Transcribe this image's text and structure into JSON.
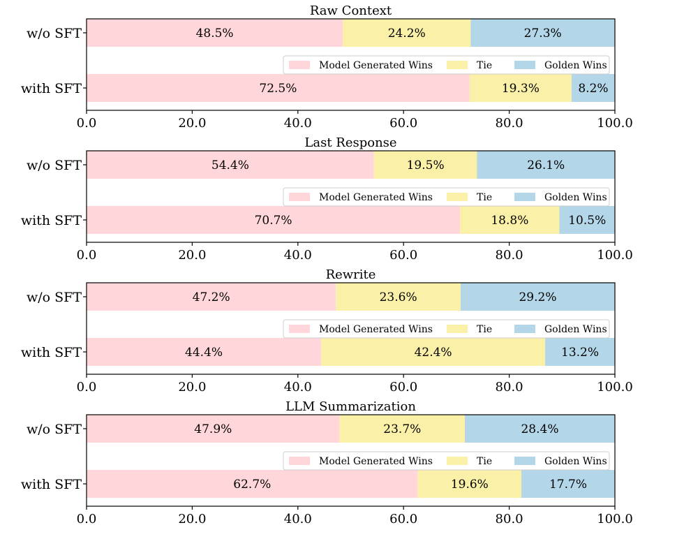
{
  "chart_data": [
    {
      "type": "bar",
      "orientation": "horizontal-stacked",
      "title": "Raw Context",
      "categories": [
        "w/o SFT",
        "with SFT"
      ],
      "series": [
        {
          "name": "Model Generated Wins",
          "color": "#ffd6d9",
          "values": [
            48.5,
            72.5
          ],
          "labels": [
            "48.5%",
            "72.5%"
          ]
        },
        {
          "name": "Tie",
          "color": "#fbf0a8",
          "values": [
            24.2,
            19.3
          ],
          "labels": [
            "24.2%",
            "19.3%"
          ]
        },
        {
          "name": "Golden Wins",
          "color": "#b3d6e8",
          "values": [
            27.3,
            8.2
          ],
          "labels": [
            "27.3%",
            "8.2%"
          ]
        }
      ],
      "xlim": [
        0,
        100
      ],
      "xticks": [
        "0.0",
        "20.0",
        "40.0",
        "60.0",
        "80.0",
        "100.0"
      ],
      "legend": "center"
    },
    {
      "type": "bar",
      "orientation": "horizontal-stacked",
      "title": "Last Response",
      "categories": [
        "w/o SFT",
        "with SFT"
      ],
      "series": [
        {
          "name": "Model Generated Wins",
          "color": "#ffd6d9",
          "values": [
            54.4,
            70.7
          ],
          "labels": [
            "54.4%",
            "70.7%"
          ]
        },
        {
          "name": "Tie",
          "color": "#fbf0a8",
          "values": [
            19.5,
            18.8
          ],
          "labels": [
            "19.5%",
            "18.8%"
          ]
        },
        {
          "name": "Golden Wins",
          "color": "#b3d6e8",
          "values": [
            26.1,
            10.5
          ],
          "labels": [
            "26.1%",
            "10.5%"
          ]
        }
      ],
      "xlim": [
        0,
        100
      ],
      "xticks": [
        "0.0",
        "20.0",
        "40.0",
        "60.0",
        "80.0",
        "100.0"
      ],
      "legend": "center"
    },
    {
      "type": "bar",
      "orientation": "horizontal-stacked",
      "title": "Rewrite",
      "categories": [
        "w/o SFT",
        "with SFT"
      ],
      "series": [
        {
          "name": "Model Generated Wins",
          "color": "#ffd6d9",
          "values": [
            47.2,
            44.4
          ],
          "labels": [
            "47.2%",
            "44.4%"
          ]
        },
        {
          "name": "Tie",
          "color": "#fbf0a8",
          "values": [
            23.6,
            42.4
          ],
          "labels": [
            "23.6%",
            "42.4%"
          ]
        },
        {
          "name": "Golden Wins",
          "color": "#b3d6e8",
          "values": [
            29.2,
            13.2
          ],
          "labels": [
            "29.2%",
            "13.2%"
          ]
        }
      ],
      "xlim": [
        0,
        100
      ],
      "xticks": [
        "0.0",
        "20.0",
        "40.0",
        "60.0",
        "80.0",
        "100.0"
      ],
      "legend": "center"
    },
    {
      "type": "bar",
      "orientation": "horizontal-stacked",
      "title": "LLM Summarization",
      "categories": [
        "w/o SFT",
        "with SFT"
      ],
      "series": [
        {
          "name": "Model Generated Wins",
          "color": "#ffd6d9",
          "values": [
            47.9,
            62.7
          ],
          "labels": [
            "47.9%",
            "62.7%"
          ]
        },
        {
          "name": "Tie",
          "color": "#fbf0a8",
          "values": [
            23.7,
            19.6
          ],
          "labels": [
            "23.7%",
            "19.6%"
          ]
        },
        {
          "name": "Golden Wins",
          "color": "#b3d6e8",
          "values": [
            28.4,
            17.7
          ],
          "labels": [
            "28.4%",
            "17.7%"
          ]
        }
      ],
      "xlim": [
        0,
        100
      ],
      "xticks": [
        "0.0",
        "20.0",
        "40.0",
        "60.0",
        "80.0",
        "100.0"
      ],
      "legend": "center"
    }
  ]
}
